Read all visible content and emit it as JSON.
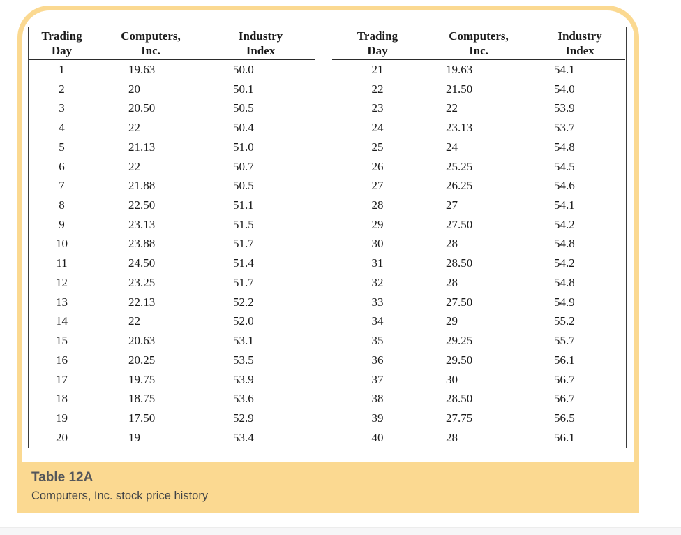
{
  "caption": {
    "title": "Table 12A",
    "subtitle": "Computers, Inc. stock price history"
  },
  "table": {
    "groups": [
      {
        "headers": [
          {
            "line1": "Trading",
            "line2": "Day"
          },
          {
            "line1": "Computers,",
            "line2": "Inc."
          },
          {
            "line1": "Industry",
            "line2": "Index"
          }
        ],
        "rows": [
          [
            "1",
            "19.63",
            "50.0"
          ],
          [
            "2",
            "20",
            "50.1"
          ],
          [
            "3",
            "20.50",
            "50.5"
          ],
          [
            "4",
            "22",
            "50.4"
          ],
          [
            "5",
            "21.13",
            "51.0"
          ],
          [
            "6",
            "22",
            "50.7"
          ],
          [
            "7",
            "21.88",
            "50.5"
          ],
          [
            "8",
            "22.50",
            "51.1"
          ],
          [
            "9",
            "23.13",
            "51.5"
          ],
          [
            "10",
            "23.88",
            "51.7"
          ],
          [
            "11",
            "24.50",
            "51.4"
          ],
          [
            "12",
            "23.25",
            "51.7"
          ],
          [
            "13",
            "22.13",
            "52.2"
          ],
          [
            "14",
            "22",
            "52.0"
          ],
          [
            "15",
            "20.63",
            "53.1"
          ],
          [
            "16",
            "20.25",
            "53.5"
          ],
          [
            "17",
            "19.75",
            "53.9"
          ],
          [
            "18",
            "18.75",
            "53.6"
          ],
          [
            "19",
            "17.50",
            "52.9"
          ],
          [
            "20",
            "19",
            "53.4"
          ]
        ]
      },
      {
        "headers": [
          {
            "line1": "Trading",
            "line2": "Day"
          },
          {
            "line1": "Computers,",
            "line2": "Inc."
          },
          {
            "line1": "Industry",
            "line2": "Index"
          }
        ],
        "rows": [
          [
            "21",
            "19.63",
            "54.1"
          ],
          [
            "22",
            "21.50",
            "54.0"
          ],
          [
            "23",
            "22",
            "53.9"
          ],
          [
            "24",
            "23.13",
            "53.7"
          ],
          [
            "25",
            "24",
            "54.8"
          ],
          [
            "26",
            "25.25",
            "54.5"
          ],
          [
            "27",
            "26.25",
            "54.6"
          ],
          [
            "28",
            "27",
            "54.1"
          ],
          [
            "29",
            "27.50",
            "54.2"
          ],
          [
            "30",
            "28",
            "54.8"
          ],
          [
            "31",
            "28.50",
            "54.2"
          ],
          [
            "32",
            "28",
            "54.8"
          ],
          [
            "33",
            "27.50",
            "54.9"
          ],
          [
            "34",
            "29",
            "55.2"
          ],
          [
            "35",
            "29.25",
            "55.7"
          ],
          [
            "36",
            "29.50",
            "56.1"
          ],
          [
            "37",
            "30",
            "56.7"
          ],
          [
            "38",
            "28.50",
            "56.7"
          ],
          [
            "39",
            "27.75",
            "56.5"
          ],
          [
            "40",
            "28",
            "56.1"
          ]
        ]
      }
    ]
  },
  "chart_data": {
    "type": "table",
    "title": "Table 12A",
    "subtitle": "Computers, Inc. stock price history",
    "columns": [
      "Trading Day",
      "Computers, Inc.",
      "Industry Index"
    ],
    "trading_day": [
      1,
      2,
      3,
      4,
      5,
      6,
      7,
      8,
      9,
      10,
      11,
      12,
      13,
      14,
      15,
      16,
      17,
      18,
      19,
      20,
      21,
      22,
      23,
      24,
      25,
      26,
      27,
      28,
      29,
      30,
      31,
      32,
      33,
      34,
      35,
      36,
      37,
      38,
      39,
      40
    ],
    "computers_inc": [
      19.63,
      20,
      20.5,
      22,
      21.13,
      22,
      21.88,
      22.5,
      23.13,
      23.88,
      24.5,
      23.25,
      22.13,
      22,
      20.63,
      20.25,
      19.75,
      18.75,
      17.5,
      19,
      19.63,
      21.5,
      22,
      23.13,
      24,
      25.25,
      26.25,
      27,
      27.5,
      28,
      28.5,
      28,
      27.5,
      29,
      29.25,
      29.5,
      30,
      28.5,
      27.75,
      28
    ],
    "industry_index": [
      50.0,
      50.1,
      50.5,
      50.4,
      51.0,
      50.7,
      50.5,
      51.1,
      51.5,
      51.7,
      51.4,
      51.7,
      52.2,
      52.0,
      53.1,
      53.5,
      53.9,
      53.6,
      52.9,
      53.4,
      54.1,
      54.0,
      53.9,
      53.7,
      54.8,
      54.5,
      54.6,
      54.1,
      54.2,
      54.8,
      54.2,
      54.8,
      54.9,
      55.2,
      55.7,
      56.1,
      56.7,
      56.7,
      56.5,
      56.1
    ]
  },
  "colors": {
    "accent_band": "#fbd991",
    "table_border": "#3b3b3b",
    "caption_title_color": "#54565a",
    "caption_text_color": "#3e4145"
  }
}
